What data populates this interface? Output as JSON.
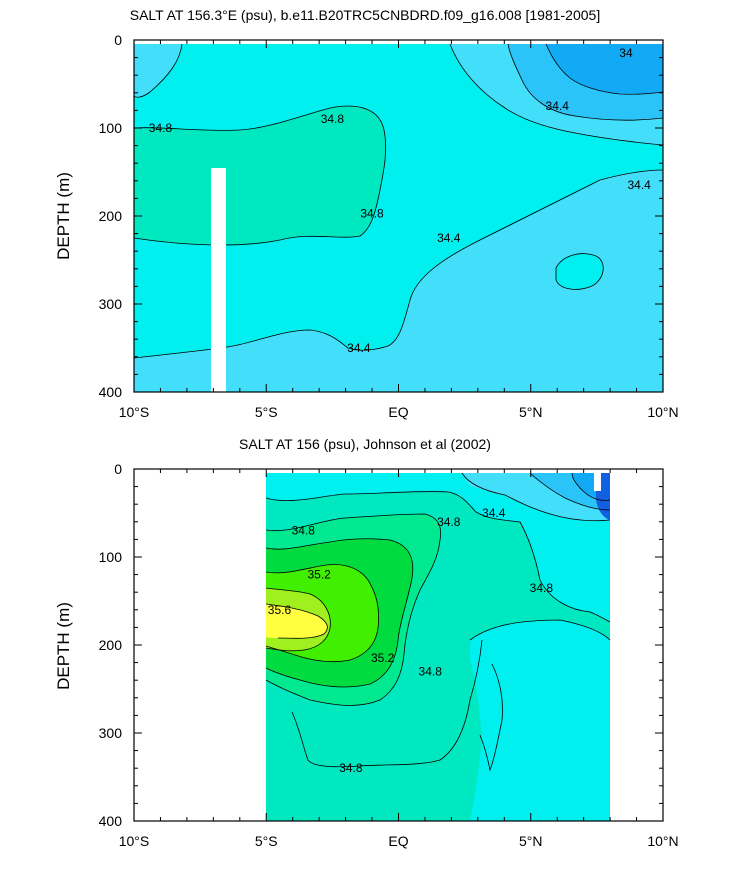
{
  "colors": {
    "c34_0": "#12aaf5",
    "c34_2": "#2bc4f8",
    "c34_4": "#43dffa",
    "c34_6": "#00f0f0",
    "c34_8": "#00e8c0",
    "c35_0": "#00e890",
    "c35_2": "#00dc40",
    "c35_4": "#40f000",
    "c35_6": "#a0f020",
    "c35_8": "#ffff40",
    "deep": "#1060e0",
    "missing": "#ffffff"
  },
  "chart_data": [
    {
      "type": "contour",
      "title": "SALT AT 156.3°E (psu), b.e11.B20TRC5CNBDRD.f09_g16.008 [1981-2005]",
      "ylabel": "DEPTH (m)",
      "xlabel": "",
      "x_ticks": [
        "10°S",
        "5°S",
        "EQ",
        "5°N",
        "10°N"
      ],
      "y_ticks": [
        "0",
        "100",
        "200",
        "300",
        "400"
      ],
      "xlim": [
        -10,
        10
      ],
      "ylim": [
        400,
        0
      ],
      "contour_labels": [
        {
          "text": "34",
          "lat": 8.6,
          "depth": 15
        },
        {
          "text": "34.4",
          "lat": 6.0,
          "depth": 75
        },
        {
          "text": "34.8",
          "lat": -9.0,
          "depth": 100
        },
        {
          "text": "34.8",
          "lat": -2.5,
          "depth": 90
        },
        {
          "text": "34.4",
          "lat": 9.1,
          "depth": 165
        },
        {
          "text": "34.8",
          "lat": -1.0,
          "depth": 197
        },
        {
          "text": "34.4",
          "lat": 1.9,
          "depth": 225
        },
        {
          "text": "34.4",
          "lat": -1.5,
          "depth": 350
        }
      ]
    },
    {
      "type": "contour",
      "title": "SALT AT 156 (psu), Johnson et al (2002)",
      "ylabel": "DEPTH (m)",
      "xlabel": "",
      "x_ticks": [
        "10°S",
        "5°S",
        "EQ",
        "5°N",
        "10°N"
      ],
      "y_ticks": [
        "0",
        "100",
        "200",
        "300",
        "400"
      ],
      "xlim": [
        -10,
        10
      ],
      "ylim": [
        400,
        0
      ],
      "data_xlim": [
        -5,
        8
      ],
      "contour_labels": [
        {
          "text": "34.4",
          "lat": 3.6,
          "depth": 50
        },
        {
          "text": "34.8",
          "lat": 1.9,
          "depth": 60
        },
        {
          "text": "34.8",
          "lat": -3.6,
          "depth": 70
        },
        {
          "text": "35.2",
          "lat": -3.0,
          "depth": 120
        },
        {
          "text": "34.8",
          "lat": 5.4,
          "depth": 135
        },
        {
          "text": "35.6",
          "lat": -4.5,
          "depth": 160
        },
        {
          "text": "35.2",
          "lat": -0.6,
          "depth": 215
        },
        {
          "text": "34.8",
          "lat": 1.2,
          "depth": 230
        },
        {
          "text": "34.8",
          "lat": -1.8,
          "depth": 340
        }
      ]
    }
  ]
}
